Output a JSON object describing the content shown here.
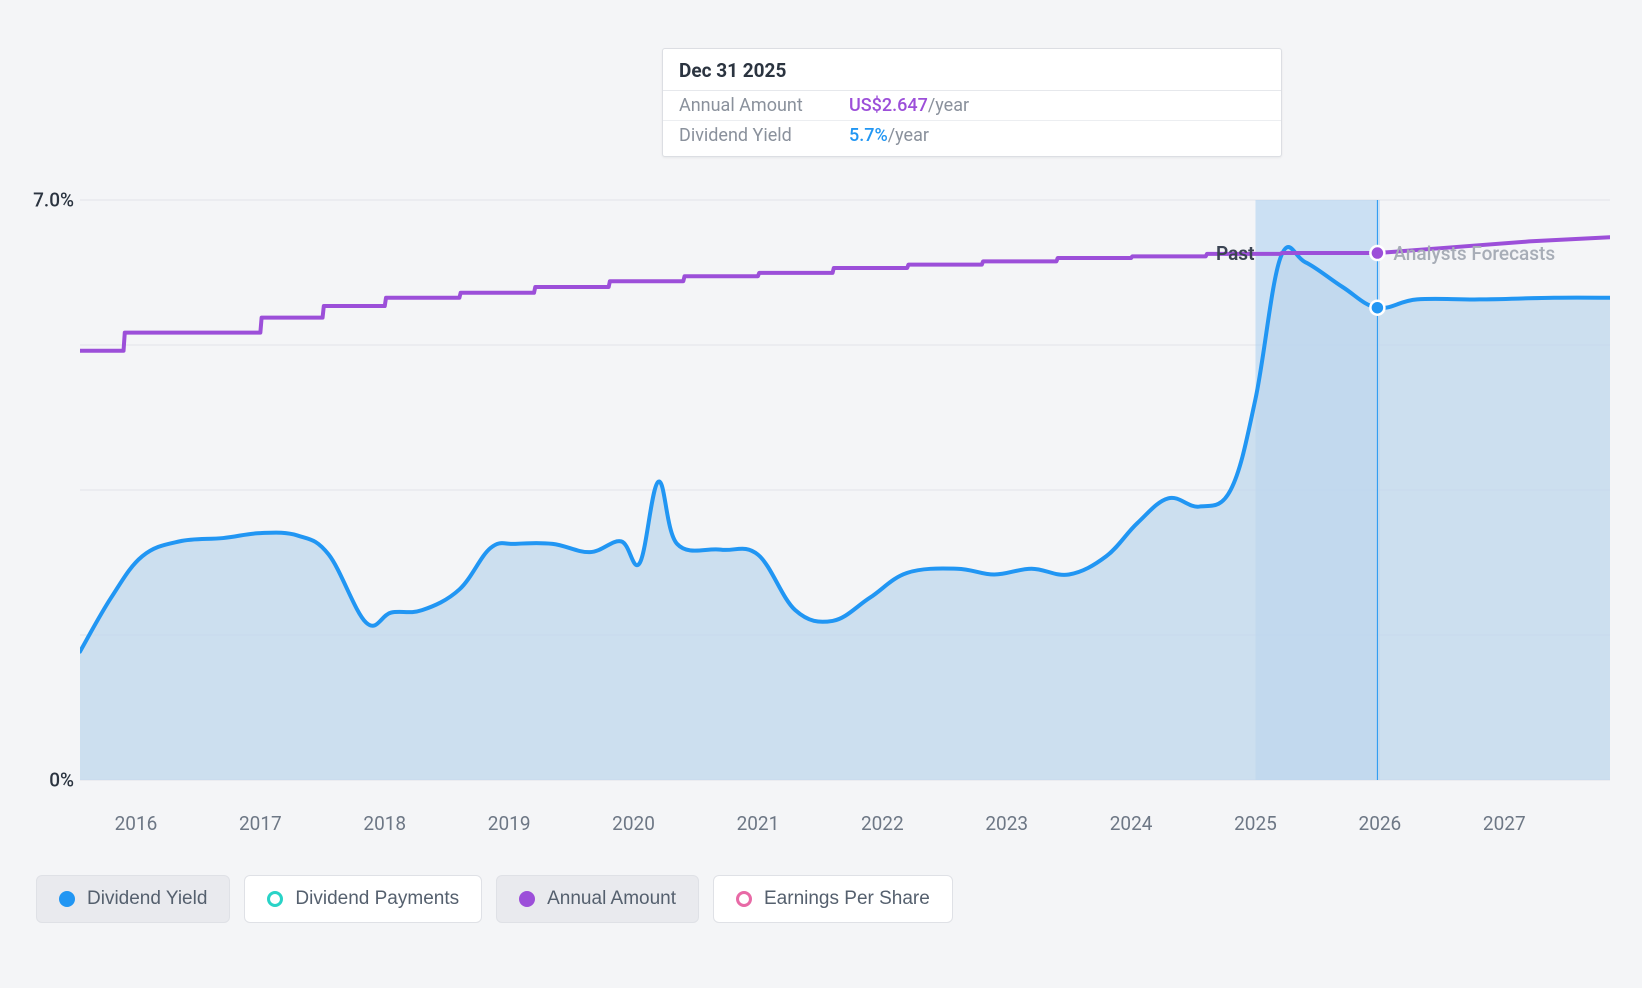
{
  "chart": {
    "type": "line-area",
    "background_color": "#f4f5f7",
    "grid_color": "#e2e4e9",
    "x_years": [
      2016,
      2017,
      2018,
      2019,
      2020,
      2021,
      2022,
      2023,
      2024,
      2025,
      2026,
      2027
    ],
    "x_domain_min": 2015.55,
    "x_domain_max": 2027.85,
    "y_min": 0,
    "y_max": 7.0,
    "y_ticks_labeled": [
      {
        "v": 7.0,
        "label": "7.0%"
      },
      {
        "v": 0.0,
        "label": "0%"
      }
    ],
    "y_ticks_unlabeled": [
      1.75,
      3.5,
      5.25
    ],
    "hover_x": 2025.98,
    "highlight_x0": 2025.0,
    "highlight_x1": 2026.0,
    "past_label": {
      "text": "Past",
      "x": 2025.04
    },
    "forecast_label": {
      "text": "Analysts Forecasts",
      "x": 2026.06
    },
    "series": {
      "dividend_yield": {
        "label": "Dividend Yield",
        "stroke": "#2196f3",
        "fill": "#bfd7ec",
        "fill_opacity": 0.75,
        "stroke_width": 4,
        "points": [
          [
            2015.55,
            1.55
          ],
          [
            2015.8,
            2.2
          ],
          [
            2016.05,
            2.7
          ],
          [
            2016.35,
            2.88
          ],
          [
            2016.7,
            2.92
          ],
          [
            2017.0,
            2.98
          ],
          [
            2017.3,
            2.95
          ],
          [
            2017.55,
            2.72
          ],
          [
            2017.85,
            1.9
          ],
          [
            2018.05,
            2.02
          ],
          [
            2018.3,
            2.05
          ],
          [
            2018.6,
            2.3
          ],
          [
            2018.85,
            2.8
          ],
          [
            2019.05,
            2.85
          ],
          [
            2019.35,
            2.85
          ],
          [
            2019.65,
            2.75
          ],
          [
            2019.9,
            2.88
          ],
          [
            2020.05,
            2.62
          ],
          [
            2020.2,
            3.6
          ],
          [
            2020.35,
            2.85
          ],
          [
            2020.7,
            2.78
          ],
          [
            2021.0,
            2.72
          ],
          [
            2021.3,
            2.05
          ],
          [
            2021.6,
            1.92
          ],
          [
            2021.9,
            2.2
          ],
          [
            2022.2,
            2.5
          ],
          [
            2022.6,
            2.55
          ],
          [
            2022.9,
            2.48
          ],
          [
            2023.2,
            2.55
          ],
          [
            2023.5,
            2.48
          ],
          [
            2023.8,
            2.7
          ],
          [
            2024.05,
            3.1
          ],
          [
            2024.3,
            3.4
          ],
          [
            2024.55,
            3.3
          ],
          [
            2024.8,
            3.5
          ],
          [
            2025.0,
            4.6
          ],
          [
            2025.2,
            6.3
          ],
          [
            2025.4,
            6.25
          ],
          [
            2025.7,
            5.95
          ],
          [
            2025.98,
            5.7
          ],
          [
            2026.3,
            5.8
          ],
          [
            2026.8,
            5.8
          ],
          [
            2027.4,
            5.82
          ],
          [
            2027.85,
            5.82
          ]
        ]
      },
      "annual_amount": {
        "label": "Annual Amount",
        "stroke": "#9c4fd9",
        "stroke_width": 4,
        "points": [
          [
            2015.55,
            5.18
          ],
          [
            2015.9,
            5.18
          ],
          [
            2015.91,
            5.4
          ],
          [
            2016.5,
            5.4
          ],
          [
            2016.51,
            5.4
          ],
          [
            2017.0,
            5.4
          ],
          [
            2017.01,
            5.58
          ],
          [
            2017.5,
            5.58
          ],
          [
            2017.51,
            5.72
          ],
          [
            2018.0,
            5.72
          ],
          [
            2018.01,
            5.82
          ],
          [
            2018.6,
            5.82
          ],
          [
            2018.61,
            5.88
          ],
          [
            2019.2,
            5.88
          ],
          [
            2019.21,
            5.95
          ],
          [
            2019.8,
            5.95
          ],
          [
            2019.81,
            6.02
          ],
          [
            2020.4,
            6.02
          ],
          [
            2020.41,
            6.08
          ],
          [
            2021.0,
            6.08
          ],
          [
            2021.01,
            6.12
          ],
          [
            2021.6,
            6.12
          ],
          [
            2021.61,
            6.18
          ],
          [
            2022.2,
            6.18
          ],
          [
            2022.21,
            6.22
          ],
          [
            2022.8,
            6.22
          ],
          [
            2022.81,
            6.26
          ],
          [
            2023.4,
            6.26
          ],
          [
            2023.41,
            6.3
          ],
          [
            2024.0,
            6.3
          ],
          [
            2024.01,
            6.32
          ],
          [
            2024.6,
            6.32
          ],
          [
            2024.61,
            6.35
          ],
          [
            2025.2,
            6.35
          ],
          [
            2025.21,
            6.36
          ],
          [
            2025.98,
            6.36
          ],
          [
            2026.5,
            6.42
          ],
          [
            2027.2,
            6.5
          ],
          [
            2027.85,
            6.55
          ]
        ]
      }
    },
    "markers": {
      "yield": {
        "x": 2025.98,
        "y": 5.7
      },
      "annual": {
        "x": 2025.98,
        "y": 6.36
      }
    }
  },
  "tooltip": {
    "date": "Dec 31 2025",
    "rows": [
      {
        "key": "Annual Amount",
        "value": "US$2.647",
        "unit": "/year",
        "cls": "purple"
      },
      {
        "key": "Dividend Yield",
        "value": "5.7%",
        "unit": "/year",
        "cls": "blue"
      }
    ]
  },
  "legend": [
    {
      "label": "Dividend Yield",
      "swatch": "sw-filled-blue",
      "active": true
    },
    {
      "label": "Dividend Payments",
      "swatch": "sw-ring-teal",
      "active": false
    },
    {
      "label": "Annual Amount",
      "swatch": "sw-filled-purple",
      "active": true
    },
    {
      "label": "Earnings Per Share",
      "swatch": "sw-ring-pink",
      "active": false
    }
  ]
}
